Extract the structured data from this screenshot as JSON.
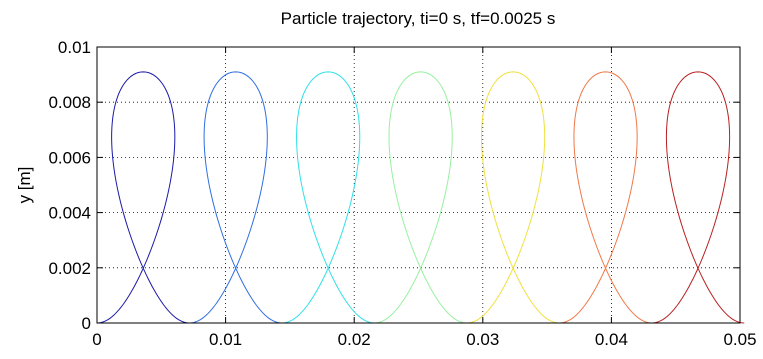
{
  "chart_data": {
    "type": "line",
    "title": "Particle trajectory, ti=0 s, tf=0.0025 s",
    "xlabel": "",
    "ylabel": "y [m]",
    "xlim": [
      0,
      0.05
    ],
    "ylim": [
      0,
      0.01
    ],
    "xticks": [
      0,
      0.01,
      0.02,
      0.03,
      0.04,
      0.05
    ],
    "xtick_labels": [
      "0",
      "0.01",
      "0.02",
      "0.03",
      "0.04",
      "0.05"
    ],
    "yticks": [
      0,
      0.002,
      0.004,
      0.006,
      0.008,
      0.01
    ],
    "ytick_labels": [
      "0",
      "0.002",
      "0.004",
      "0.006",
      "0.008",
      "0.01"
    ],
    "grid": true,
    "curve": "cycloid-like loops",
    "loop_count": 7,
    "loop_period_x": 0.00719,
    "loop_center_y": 0.00455,
    "loop_radius_y": 0.00455,
    "loop_radius_x": 0.00365,
    "loop_x_drift": 0.00114,
    "loop_colors": [
      "#1a1aa8",
      "#2f6ee0",
      "#30e0e8",
      "#98f0a0",
      "#f0e040",
      "#f07848",
      "#b82020"
    ]
  }
}
